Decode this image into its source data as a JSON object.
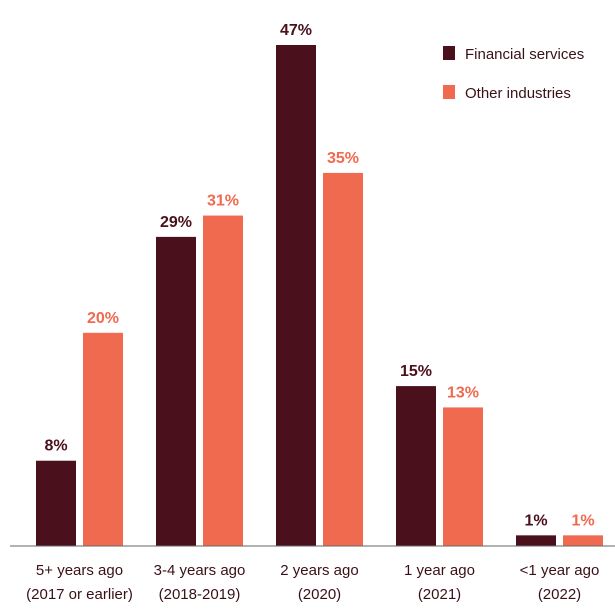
{
  "colors": {
    "financial": "#4a111c",
    "other": "#f06a50",
    "axis": "#666666"
  },
  "chart_data": {
    "type": "bar",
    "title": "",
    "xlabel": "",
    "ylabel": "",
    "ylim": [
      0,
      50
    ],
    "grid": false,
    "legend_position": "top-right",
    "categories": [
      "5+ years ago (2017 or earlier)",
      "3-4 years ago (2018-2019)",
      "2 years ago (2020)",
      "1 year ago (2021)",
      "<1 year ago (2022)"
    ],
    "category_lines": [
      [
        "5+ years ago",
        "(2017 or earlier)"
      ],
      [
        "3-4 years ago",
        "(2018-2019)"
      ],
      [
        "2 years ago",
        "(2020)"
      ],
      [
        "1 year ago",
        "(2021)"
      ],
      [
        "<1 year ago",
        "(2022)"
      ]
    ],
    "series": [
      {
        "name": "Financial services",
        "values": [
          8,
          29,
          47,
          15,
          1
        ],
        "labels": [
          "8%",
          "29%",
          "47%",
          "15%",
          "1%"
        ]
      },
      {
        "name": "Other industries",
        "values": [
          20,
          31,
          35,
          13,
          1
        ],
        "labels": [
          "20%",
          "31%",
          "35%",
          "13%",
          "1%"
        ]
      }
    ]
  }
}
